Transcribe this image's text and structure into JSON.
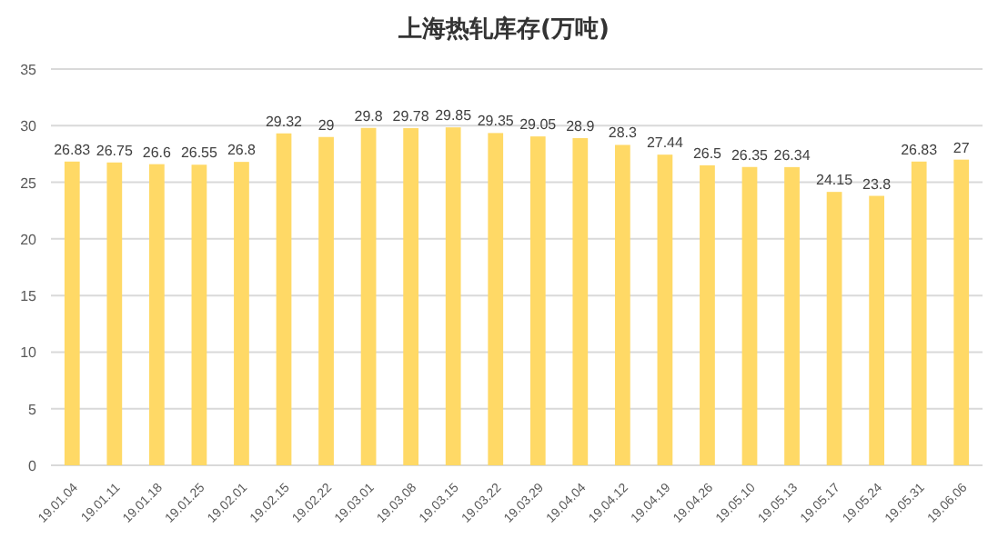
{
  "chart_data": {
    "type": "bar",
    "title": "上海热轧库存(万吨)",
    "categories": [
      "19.01.04",
      "19.01.11",
      "19.01.18",
      "19.01.25",
      "19.02.01",
      "19.02.15",
      "19.02.22",
      "19.03.01",
      "19.03.08",
      "19.03.15",
      "19.03.22",
      "19.03.29",
      "19.04.04",
      "19.04.12",
      "19.04.19",
      "19.04.26",
      "19.05.10",
      "19.05.13",
      "19.05.17",
      "19.05.24",
      "19.05.31",
      "19.06.06"
    ],
    "values": [
      26.83,
      26.75,
      26.6,
      26.55,
      26.8,
      29.32,
      29,
      29.8,
      29.78,
      29.85,
      29.35,
      29.05,
      28.9,
      28.3,
      27.44,
      26.5,
      26.35,
      26.34,
      24.15,
      23.8,
      26.83,
      27
    ],
    "color": "#ffd966",
    "ylim": [
      0,
      35
    ],
    "yticks": [
      0,
      5,
      10,
      15,
      20,
      25,
      30,
      35
    ],
    "grid": "y",
    "data_labels": true
  }
}
